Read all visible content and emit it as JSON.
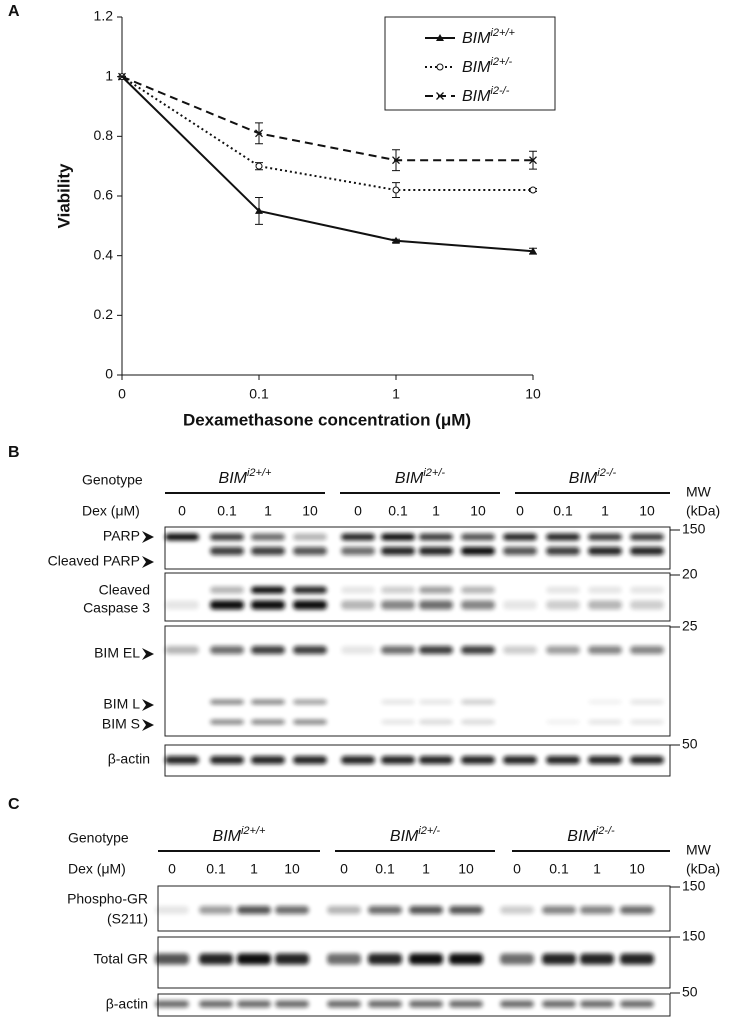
{
  "panels": [
    "A",
    "B",
    "C"
  ],
  "chart_data": {
    "type": "line",
    "x_label": "Dexamethasone concentration (μM)",
    "y_label": "Viability",
    "categories": [
      "0",
      "0.1",
      "1",
      "10"
    ],
    "ylim": [
      0,
      1.2
    ],
    "yticks": [
      0,
      0.2,
      0.4,
      0.6,
      0.8,
      1,
      1.2
    ],
    "legend": "upper right",
    "series": [
      {
        "name": "BIMi2+/+",
        "color": "#111111",
        "dash": "solid",
        "marker": "triangle",
        "values": [
          1,
          0.55,
          0.45,
          0.415
        ],
        "errors": [
          0,
          0.045,
          0.005,
          0.01
        ]
      },
      {
        "name": "BIMi2+/-",
        "color": "#111111",
        "dash": "dotted",
        "marker": "circle",
        "values": [
          1,
          0.7,
          0.62,
          0.62
        ],
        "errors": [
          0,
          0.012,
          0.025,
          0.005
        ]
      },
      {
        "name": "BIMi2-/-",
        "color": "#111111",
        "dash": "dashed",
        "marker": "x",
        "values": [
          1,
          0.81,
          0.72,
          0.72
        ],
        "errors": [
          0,
          0.035,
          0.035,
          0.03
        ]
      }
    ]
  },
  "blot_b": {
    "genotype_label": "Genotype",
    "dex_label": "Dex (μM)",
    "genotypes": [
      "BIMi2+/+",
      "BIMi2+/-",
      "BIMi2-/-"
    ],
    "doses": [
      "0",
      "0.1",
      "1",
      "10"
    ],
    "mw_label": "MW",
    "mw_unit": "(kDa)",
    "rows": [
      "PARP",
      "Cleaved PARP",
      "Cleaved",
      "Caspase 3",
      "BIM EL",
      "BIM L",
      "BIM S",
      "β-actin"
    ],
    "markers": [
      "150",
      "20",
      "25",
      "50"
    ]
  },
  "blot_c": {
    "genotype_label": "Genotype",
    "dex_label": "Dex (μM)",
    "genotypes": [
      "BIMi2+/+",
      "BIMi2+/-",
      "BIMi2-/-"
    ],
    "doses": [
      "0",
      "0.1",
      "1",
      "10"
    ],
    "mw_label": "MW",
    "mw_unit": "(kDa)",
    "rows": [
      "Phospho-GR",
      "(S211)",
      "Total GR",
      "β-actin"
    ],
    "markers": [
      "150",
      "150",
      "50"
    ]
  }
}
